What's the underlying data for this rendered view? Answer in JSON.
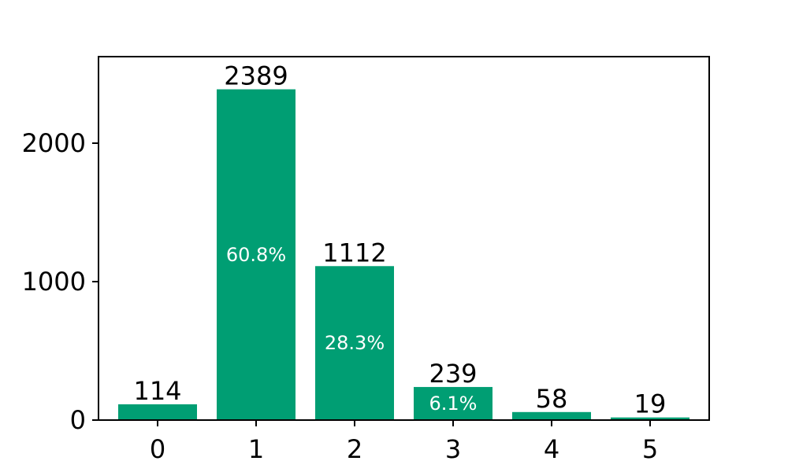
{
  "chart_data": {
    "type": "bar",
    "title": "",
    "xlabel": "",
    "ylabel": "",
    "categories": [
      "0",
      "1",
      "2",
      "3",
      "4",
      "5"
    ],
    "values": [
      114,
      2389,
      1112,
      239,
      58,
      19
    ],
    "value_labels": [
      "114",
      "2389",
      "1112",
      "239",
      "58",
      "19"
    ],
    "percent_labels": [
      "",
      "60.8%",
      "28.3%",
      "6.1%",
      "",
      ""
    ],
    "ylim": [
      0,
      2625
    ],
    "yticks": [
      0,
      1000,
      2000
    ],
    "ytick_labels": [
      "0",
      "1000",
      "2000"
    ],
    "bar_color": "#009e73",
    "grid": false,
    "legend": "none"
  }
}
